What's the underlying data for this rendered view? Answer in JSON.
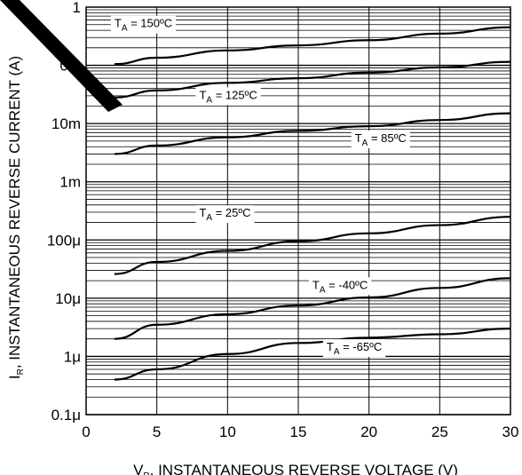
{
  "chart_data": {
    "type": "line",
    "title": "",
    "xlabel": {
      "prefix": "V",
      "sub": "R",
      "text": ", INSTANTANEOUS REVERSE VOLTAGE (V)"
    },
    "ylabel": {
      "prefix": "I",
      "sub": "R",
      "text": ", INSTANTANEOUS REVERSE CURRENT (A)"
    },
    "xlim": [
      0,
      30
    ],
    "ylim": [
      1e-07,
      1
    ],
    "yscale": "log",
    "grid": true,
    "x_ticks": [
      {
        "value": 0,
        "label": "0"
      },
      {
        "value": 5,
        "label": "5"
      },
      {
        "value": 10,
        "label": "10"
      },
      {
        "value": 15,
        "label": "15"
      },
      {
        "value": 20,
        "label": "20"
      },
      {
        "value": 25,
        "label": "25"
      },
      {
        "value": 30,
        "label": "30"
      }
    ],
    "y_ticks": [
      {
        "value": 1,
        "label": "1"
      },
      {
        "value": 0.1,
        "label": "0.1"
      },
      {
        "value": 0.01,
        "label": "10m"
      },
      {
        "value": 0.001,
        "label": "1m"
      },
      {
        "value": 0.0001,
        "label": "100μ"
      },
      {
        "value": 1e-05,
        "label": "10μ"
      },
      {
        "value": 1e-06,
        "label": "1μ"
      },
      {
        "value": 1e-07,
        "label": "0.1μ"
      }
    ],
    "series": [
      {
        "name": "TA = 150ºC",
        "label_pre": "T",
        "label_sub": "A",
        "label_post": " = 150ºC",
        "x": [
          2,
          5,
          10,
          15,
          20,
          25,
          30
        ],
        "y": [
          0.105,
          0.135,
          0.18,
          0.22,
          0.27,
          0.35,
          0.45
        ]
      },
      {
        "name": "TA = 125ºC",
        "label_pre": "T",
        "label_sub": "A",
        "label_post": " = 125ºC",
        "x": [
          2,
          5,
          10,
          15,
          20,
          25,
          30
        ],
        "y": [
          0.028,
          0.037,
          0.05,
          0.06,
          0.075,
          0.092,
          0.115
        ]
      },
      {
        "name": "TA = 85ºC",
        "label_pre": "T",
        "label_sub": "A",
        "label_post": " = 85ºC",
        "x": [
          2,
          5,
          10,
          15,
          20,
          25,
          30
        ],
        "y": [
          0.003,
          0.0042,
          0.0058,
          0.0075,
          0.009,
          0.0115,
          0.015
        ]
      },
      {
        "name": "TA = 25ºC",
        "label_pre": "T",
        "label_sub": "A",
        "label_post": " = 25ºC",
        "x": [
          2,
          5,
          10,
          15,
          20,
          25,
          30
        ],
        "y": [
          2.6e-05,
          4.2e-05,
          6.5e-05,
          9.5e-05,
          0.00013,
          0.00018,
          0.00025
        ]
      },
      {
        "name": "TA = -40ºC",
        "label_pre": "T",
        "label_sub": "A",
        "label_post": " = -40ºC",
        "x": [
          2,
          5,
          10,
          15,
          20,
          25,
          30
        ],
        "y": [
          2e-06,
          3.5e-06,
          5.3e-06,
          7.5e-06,
          1.03e-05,
          1.5e-05,
          2.2e-05
        ]
      },
      {
        "name": "TA = -65ºC",
        "label_pre": "T",
        "label_sub": "A",
        "label_post": " = -65ºC",
        "x": [
          2,
          5,
          10,
          15,
          20,
          25,
          30
        ],
        "y": [
          4e-07,
          6e-07,
          1.1e-06,
          1.7e-06,
          2.1e-06,
          2.4e-06,
          3e-06
        ]
      }
    ]
  }
}
